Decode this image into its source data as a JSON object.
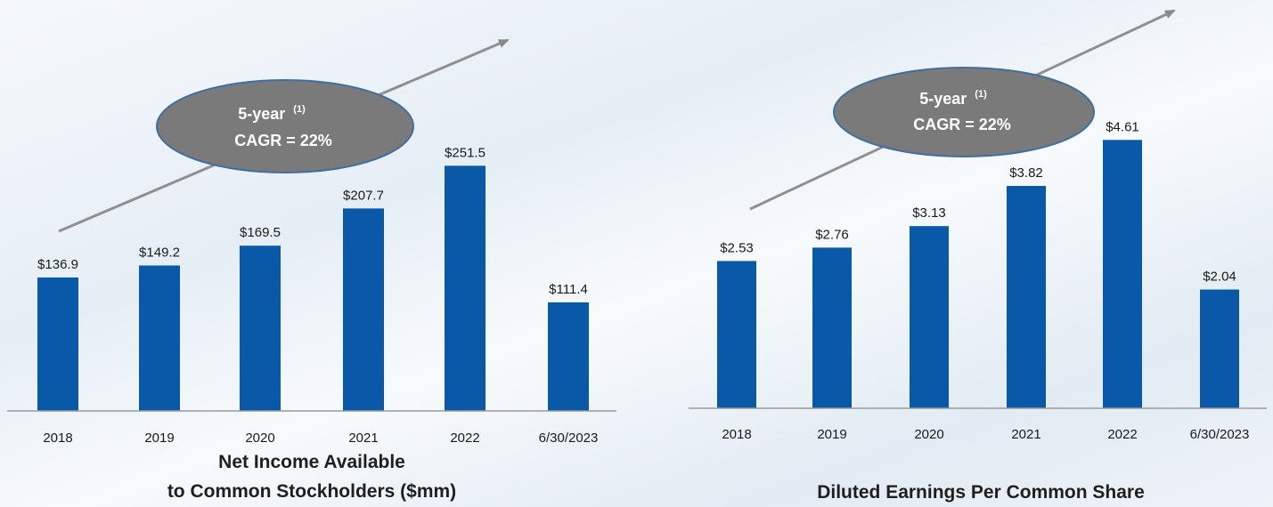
{
  "chart_data": [
    {
      "type": "bar",
      "categories": [
        "2018",
        "2019",
        "2020",
        "2021",
        "2022",
        "6/30/2023"
      ],
      "values": [
        136.9,
        149.2,
        169.5,
        207.7,
        251.5,
        111.4
      ],
      "value_labels": [
        "$136.9",
        "$149.2",
        "$169.5",
        "$207.7",
        "$251.5",
        "$111.4"
      ],
      "title_lines": [
        "Net Income Available",
        "to Common Stockholders ($mm)"
      ],
      "xlabel": "",
      "ylabel": "",
      "ylim": [
        0,
        300
      ],
      "grid": false,
      "legend": "none",
      "bar_color": "#0a58a8",
      "annotation": {
        "line1": "5-year",
        "superscript": "(1)",
        "line2": "CAGR = 22%"
      }
    },
    {
      "type": "bar",
      "categories": [
        "2018",
        "2019",
        "2020",
        "2021",
        "2022",
        "6/30/2023"
      ],
      "values": [
        2.53,
        2.76,
        3.13,
        3.82,
        4.61,
        2.04
      ],
      "value_labels": [
        "$2.53",
        "$2.76",
        "$3.13",
        "$3.82",
        "$4.61",
        "$2.04"
      ],
      "title_lines": [
        "Diluted Earnings Per Common Share"
      ],
      "xlabel": "",
      "ylabel": "",
      "ylim": [
        0,
        5.5
      ],
      "grid": false,
      "legend": "none",
      "bar_color": "#0a58a8",
      "annotation": {
        "line1": "5-year",
        "superscript": "(1)",
        "line2": "CAGR = 22%"
      }
    }
  ]
}
